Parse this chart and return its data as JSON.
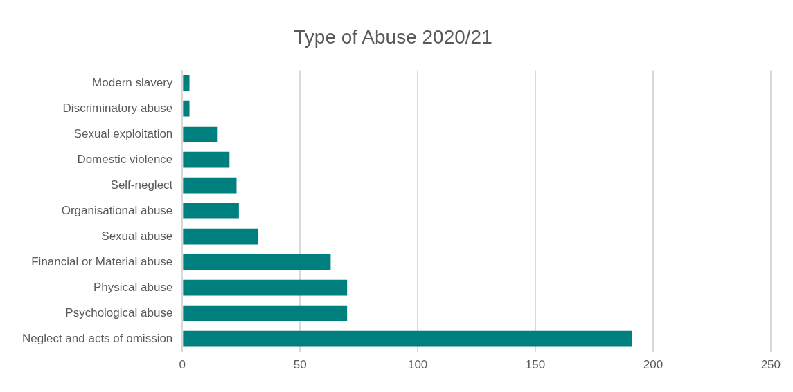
{
  "chart_data": {
    "type": "bar",
    "orientation": "horizontal",
    "title": "Type of Abuse 2020/21",
    "categories": [
      "Modern slavery",
      "Discriminatory abuse",
      "Sexual exploitation",
      "Domestic violence",
      "Self-neglect",
      "Organisational abuse",
      "Sexual abuse",
      "Financial or Material abuse",
      "Physical abuse",
      "Psychological abuse",
      "Neglect and acts of omission"
    ],
    "values": [
      3,
      3,
      15,
      20,
      23,
      24,
      32,
      63,
      70,
      70,
      191
    ],
    "color": "#007f7f",
    "xlim": [
      0,
      250
    ],
    "xticks": [
      0,
      50,
      100,
      150,
      200,
      250
    ],
    "grid": "x",
    "legend": false
  }
}
